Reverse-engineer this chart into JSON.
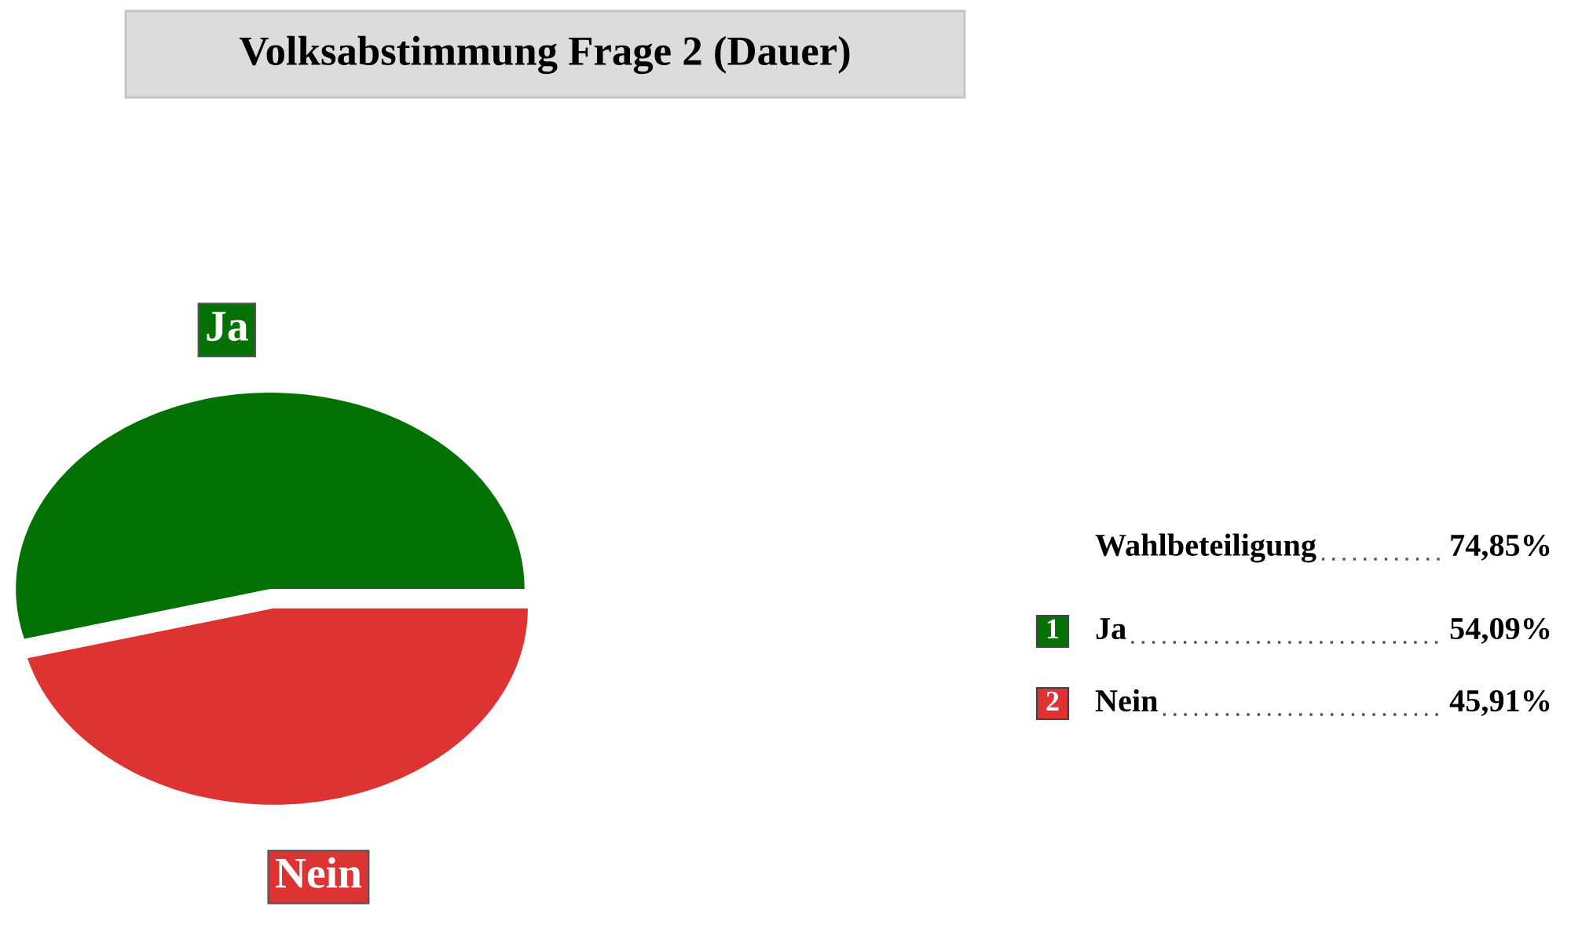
{
  "chart_data": {
    "type": "pie",
    "title": "Volksabstimmung Frage 2 (Dauer)",
    "categories": [
      "Ja",
      "Nein"
    ],
    "values": [
      54.09,
      45.91
    ],
    "colors": [
      "#037103",
      "#dd3333"
    ],
    "value_labels": [
      "54,09%",
      "45,91%"
    ],
    "annotations": [
      "Wahlbeteiligung",
      "74,85%",
      "1",
      "2"
    ],
    "legend": "right"
  }
}
